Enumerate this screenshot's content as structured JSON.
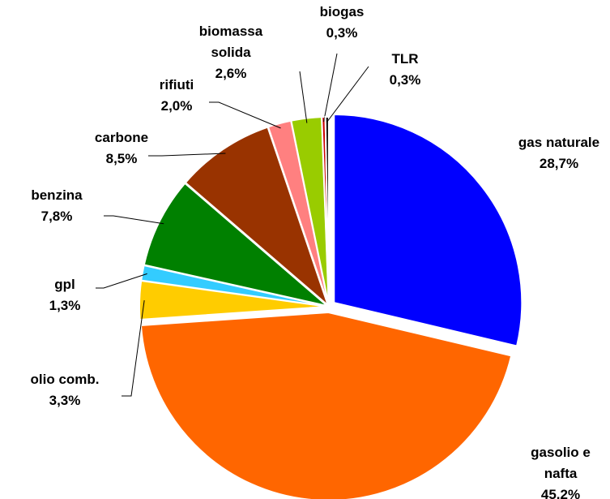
{
  "chart_data": {
    "type": "pie",
    "categories": [
      "gas naturale",
      "gasolio e nafta",
      "olio comb.",
      "gpl",
      "benzina",
      "carbone",
      "rifiuti",
      "biomassa solida",
      "biogas",
      "TLR"
    ],
    "values": [
      28.7,
      45.2,
      3.3,
      1.3,
      7.8,
      8.5,
      2.0,
      2.6,
      0.3,
      0.3
    ],
    "value_labels": [
      "28,7%",
      "45,2%",
      "3,3%",
      "1,3%",
      "7,8%",
      "8,5%",
      "2,0%",
      "2,6%",
      "0,3%",
      "0,3%"
    ],
    "colors": [
      "#0000ff",
      "#ff6600",
      "#ffcc00",
      "#33ccff",
      "#008000",
      "#993300",
      "#ff8080",
      "#99cc00",
      "#cc0000",
      "#1a1a1a"
    ]
  }
}
